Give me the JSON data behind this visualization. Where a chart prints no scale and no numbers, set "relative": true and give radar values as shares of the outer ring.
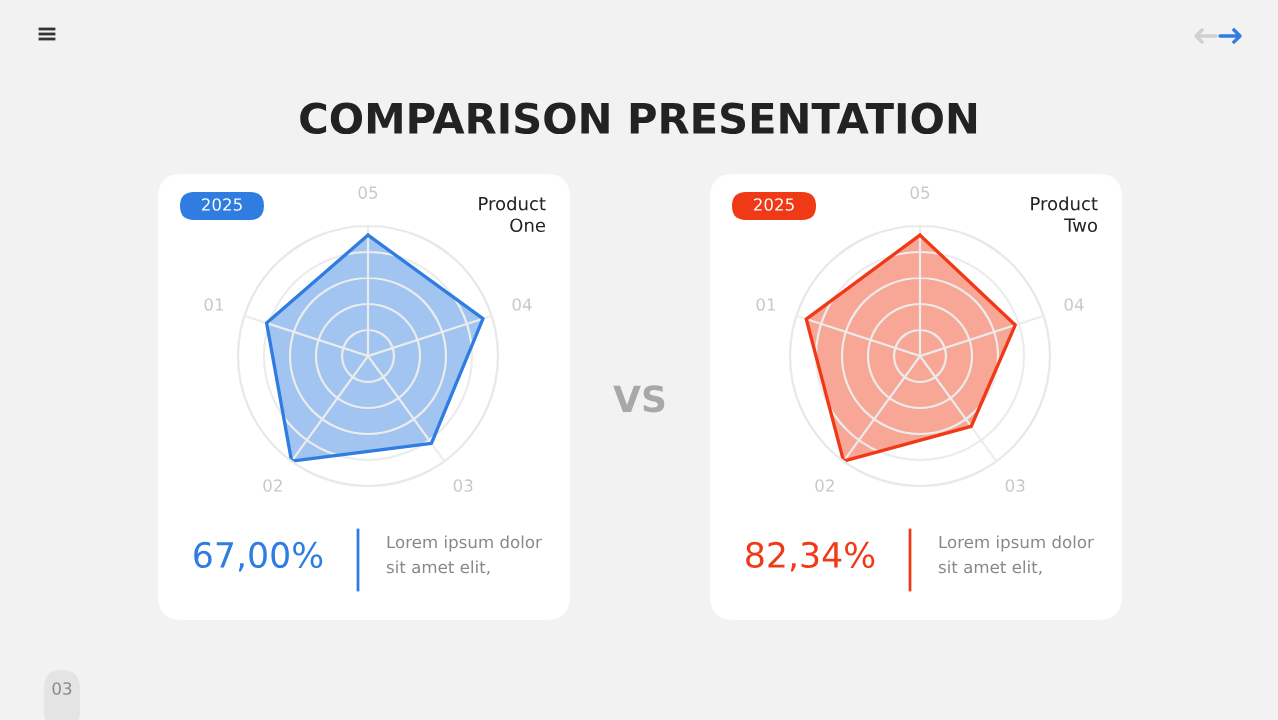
{
  "chart_data": [
    {
      "type": "other",
      "title": "COMPARISON PRESENTATION",
      "annotations": [
        "VS",
        "03"
      ]
    },
    {
      "type": "radar",
      "title": "Product One",
      "subtitle": "2025",
      "relative": true,
      "categories": [
        "05",
        "04",
        "03",
        "02",
        "01"
      ],
      "grid": true,
      "series": [
        {
          "color": "#2f7de1",
          "values": [
            0.93,
            0.93,
            0.83,
            1.0,
            0.82
          ]
        }
      ],
      "annotations": [
        "67,00%",
        "Lorem ipsum dolor sit amet elit,"
      ]
    },
    {
      "type": "radar",
      "title": "Product Two",
      "subtitle": "2025",
      "relative": true,
      "categories": [
        "05",
        "04",
        "03",
        "02",
        "01"
      ],
      "grid": true,
      "series": [
        {
          "color": "#f03a17",
          "values": [
            0.93,
            0.77,
            0.67,
            1.0,
            0.92
          ]
        }
      ],
      "annotations": [
        "82,34%",
        "Lorem ipsum dolor sit amet elit,"
      ]
    }
  ]
}
